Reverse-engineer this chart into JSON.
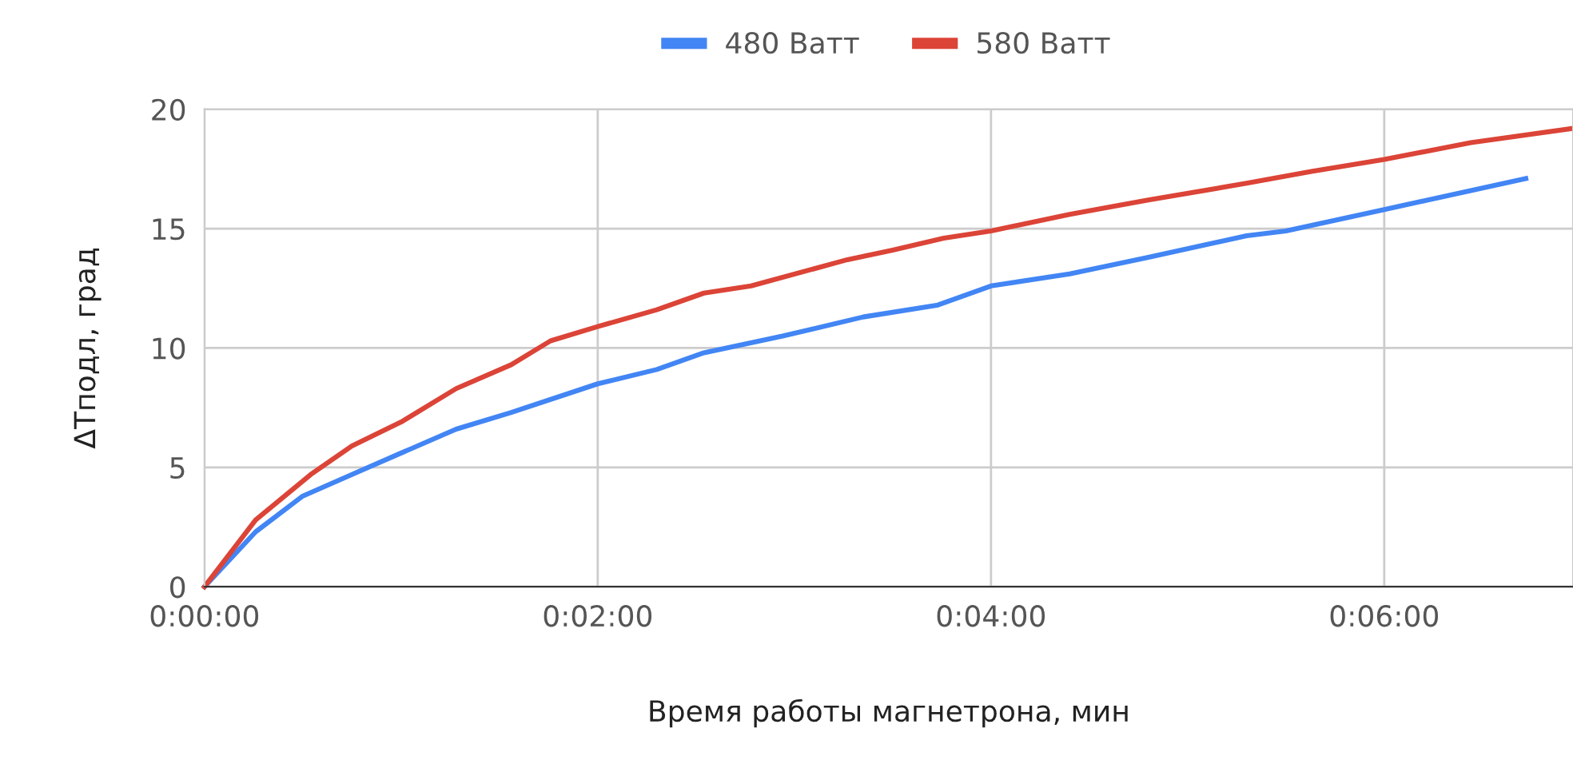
{
  "chart_data": {
    "type": "line",
    "xlabel": "Время работы магнетрона, мин",
    "ylabel": "ΔTподл, град",
    "xlim": [
      0,
      6.96
    ],
    "xticks": [
      {
        "value": 0,
        "label": "0:00:00"
      },
      {
        "value": 2,
        "label": "0:02:00"
      },
      {
        "value": 4,
        "label": "0:04:00"
      },
      {
        "value": 6,
        "label": "0:06:00"
      }
    ],
    "ylim": [
      0,
      20
    ],
    "yticks": [
      0,
      5,
      10,
      15,
      20
    ],
    "grid": true,
    "legend": "top",
    "marker": "none",
    "line_style": "solid",
    "series": [
      {
        "name": "480 Ватт",
        "color": "#4285f4",
        "x": [
          0,
          0.26,
          0.5,
          0.75,
          1.0,
          1.28,
          1.56,
          2.0,
          2.3,
          2.54,
          2.94,
          3.35,
          3.73,
          4.0,
          4.4,
          4.8,
          5.3,
          5.5,
          6.0,
          6.72
        ],
        "values": [
          0,
          2.3,
          3.8,
          4.7,
          5.6,
          6.6,
          7.3,
          8.5,
          9.1,
          9.8,
          10.5,
          11.3,
          11.8,
          12.6,
          13.1,
          13.8,
          14.7,
          14.9,
          15.8,
          17.1
        ]
      },
      {
        "name": "580 Ватт",
        "color": "#db4437",
        "x": [
          0,
          0.26,
          0.54,
          0.75,
          1.0,
          1.28,
          1.56,
          1.76,
          2.0,
          2.3,
          2.54,
          2.78,
          3.27,
          3.5,
          3.76,
          4.0,
          4.4,
          4.8,
          5.3,
          5.63,
          6.0,
          6.44,
          6.96
        ],
        "values": [
          0,
          2.8,
          4.7,
          5.9,
          6.9,
          8.3,
          9.3,
          10.3,
          10.9,
          11.6,
          12.3,
          12.6,
          13.7,
          14.1,
          14.6,
          14.9,
          15.6,
          16.2,
          16.9,
          17.4,
          17.9,
          18.6,
          19.2
        ]
      }
    ]
  }
}
